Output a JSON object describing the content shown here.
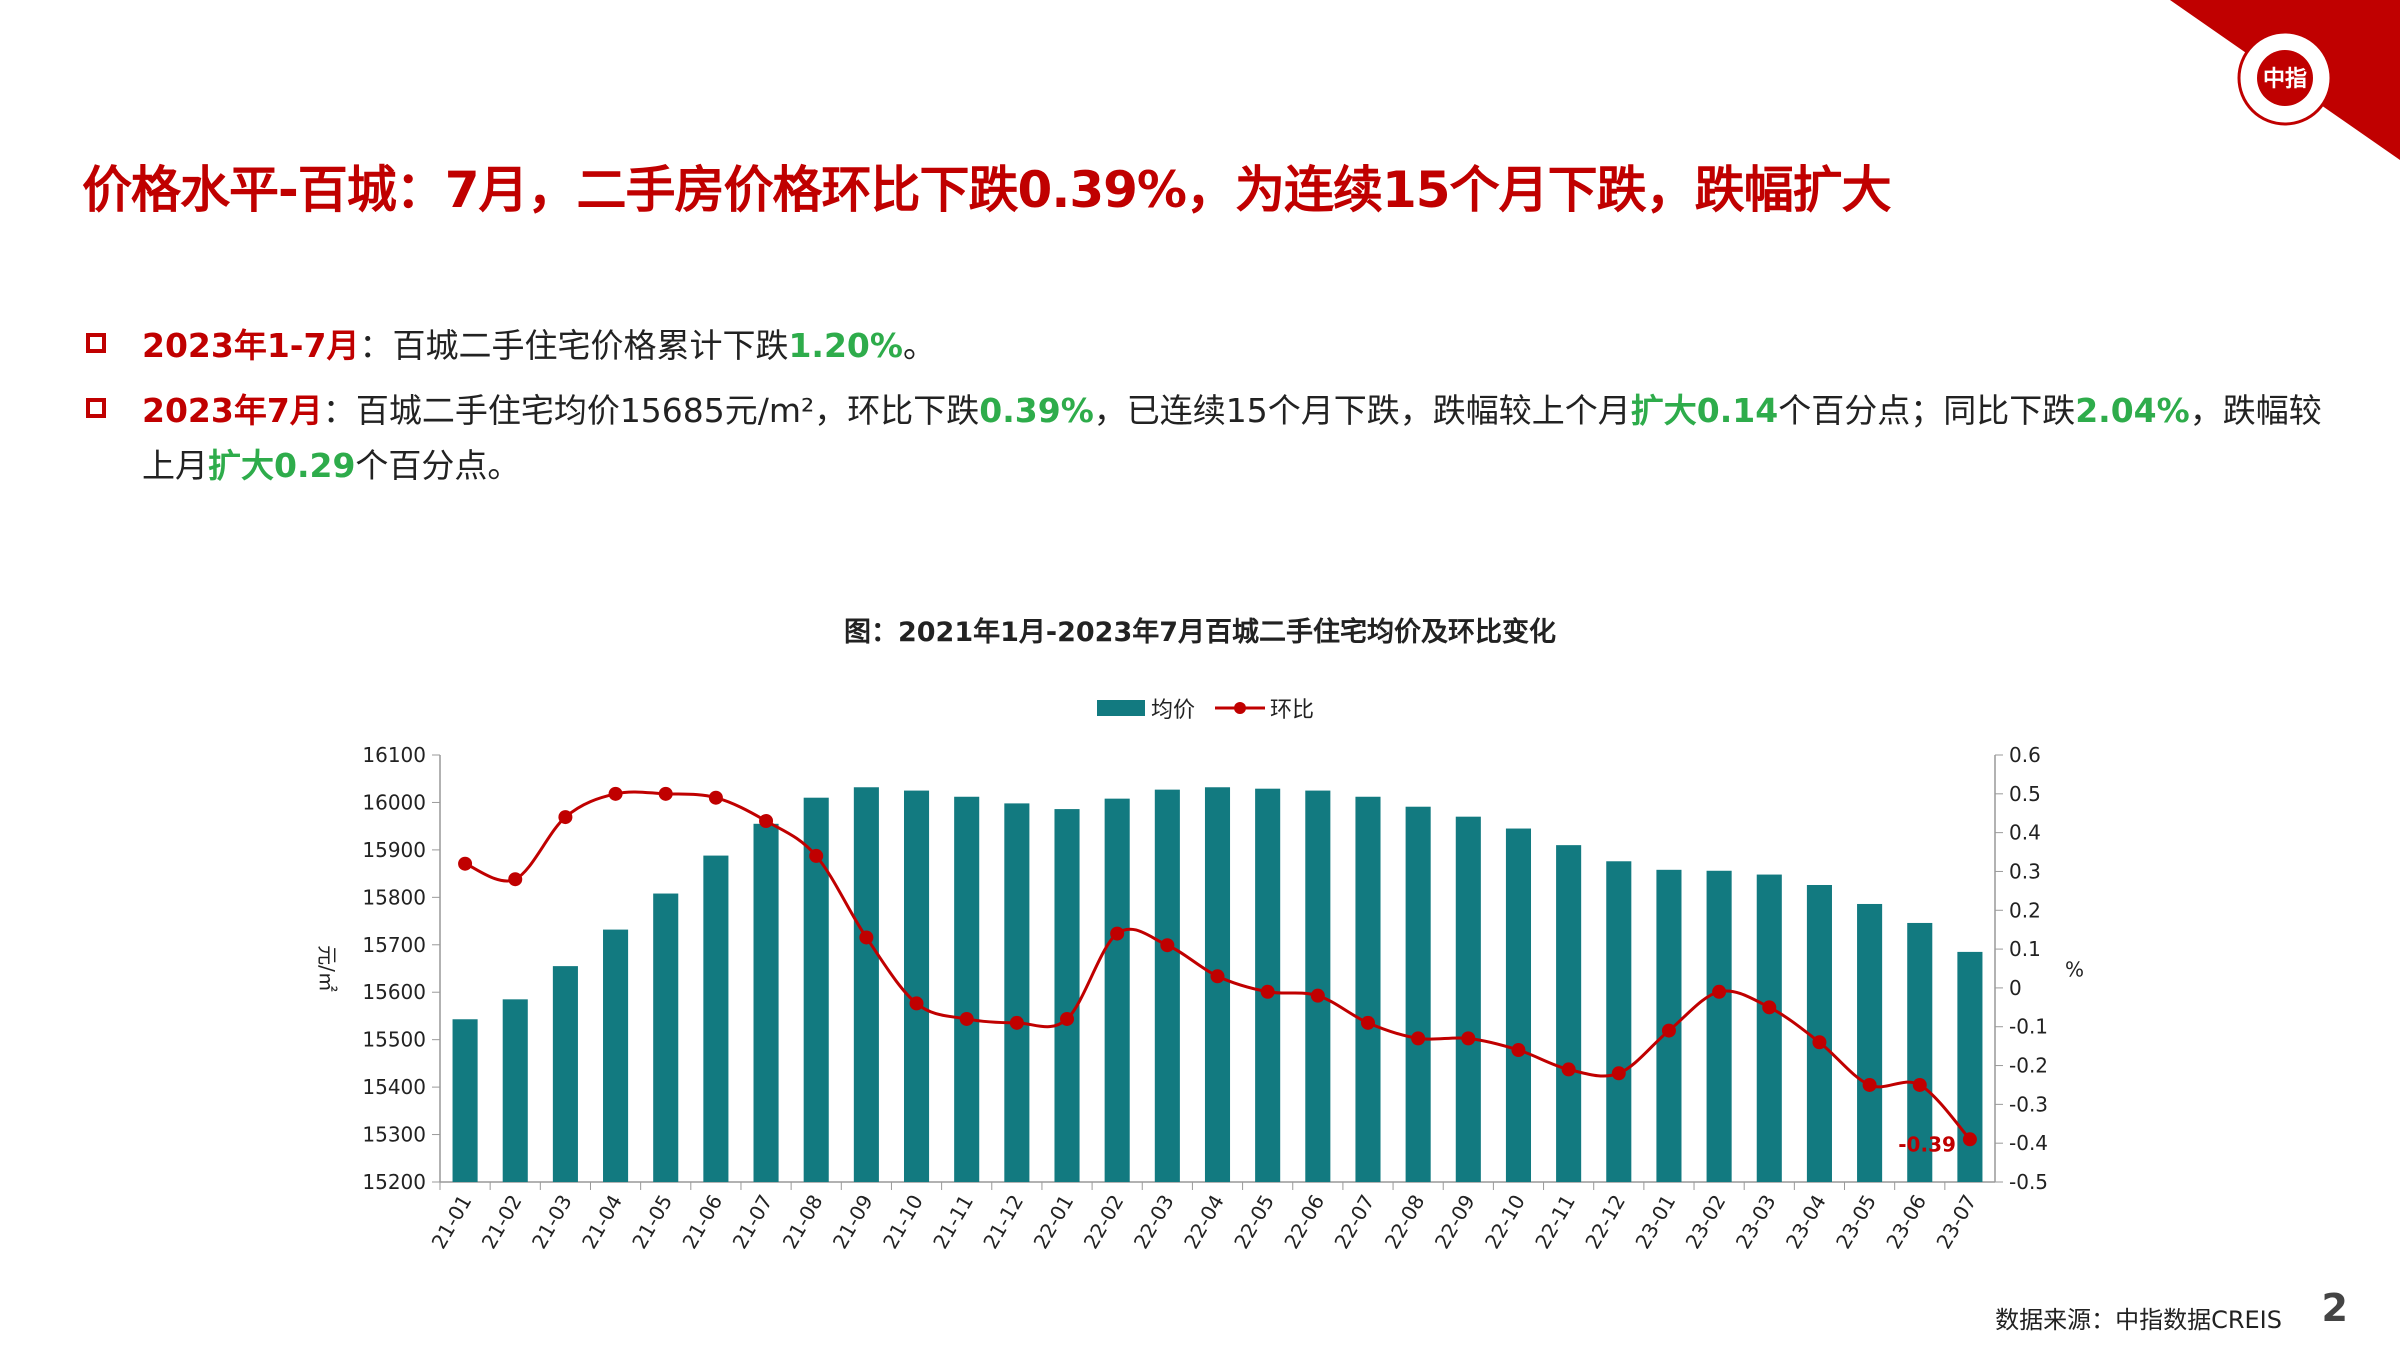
{
  "title": "价格水平-百城：7月，二手房价格环比下跌0.39%，为连续15个月下跌，跌幅扩大",
  "bullets": [
    {
      "segments": [
        {
          "text": "2023年1-7月",
          "style": "red"
        },
        {
          "text": "：百城二手住宅价格累计下跌",
          "style": "normal"
        },
        {
          "text": "1.20%",
          "style": "green"
        },
        {
          "text": "。",
          "style": "normal"
        }
      ]
    },
    {
      "segments": [
        {
          "text": "2023年7月",
          "style": "red"
        },
        {
          "text": "：百城二手住宅均价15685元/m²，环比下跌",
          "style": "normal"
        },
        {
          "text": "0.39%",
          "style": "green"
        },
        {
          "text": "，已连续15个月下跌，跌幅较上个月",
          "style": "normal"
        },
        {
          "text": "扩大0.14",
          "style": "green"
        },
        {
          "text": "个百分点；同比下跌",
          "style": "normal"
        },
        {
          "text": "2.04%",
          "style": "green"
        },
        {
          "text": "，跌幅较上月",
          "style": "normal"
        },
        {
          "text": "扩大0.29",
          "style": "green"
        },
        {
          "text": "个百分点。",
          "style": "normal"
        }
      ]
    }
  ],
  "chart_title": "图：2021年1月-2023年7月百城二手住宅均价及环比变化",
  "source": "数据来源：中指数据CREIS",
  "page_number": "2",
  "corner_logo_text": "中指",
  "colors": {
    "title_red": "#c00000",
    "highlight_green": "#2eac4b",
    "bar": "#127a80",
    "line": "#c00000"
  },
  "chart_data": {
    "type": "bar+line",
    "categories": [
      "21-01",
      "21-02",
      "21-03",
      "21-04",
      "21-05",
      "21-06",
      "21-07",
      "21-08",
      "21-09",
      "21-10",
      "21-11",
      "21-12",
      "22-01",
      "22-02",
      "22-03",
      "22-04",
      "22-05",
      "22-06",
      "22-07",
      "22-08",
      "22-09",
      "22-10",
      "22-11",
      "22-12",
      "23-01",
      "23-02",
      "23-03",
      "23-04",
      "23-05",
      "23-06",
      "23-07"
    ],
    "series": [
      {
        "name": "均价",
        "type": "bar",
        "axis": "left",
        "values": [
          15543,
          15585,
          15655,
          15732,
          15808,
          15888,
          15955,
          16010,
          16032,
          16025,
          16012,
          15998,
          15986,
          16008,
          16027,
          16032,
          16029,
          16025,
          16012,
          15991,
          15970,
          15945,
          15910,
          15876,
          15858,
          15856,
          15848,
          15826,
          15786,
          15746,
          15685
        ]
      },
      {
        "name": "环比",
        "type": "line",
        "axis": "right",
        "values": [
          0.32,
          0.28,
          0.44,
          0.5,
          0.5,
          0.49,
          0.43,
          0.34,
          0.13,
          -0.04,
          -0.08,
          -0.09,
          -0.08,
          0.14,
          0.11,
          0.03,
          -0.01,
          -0.02,
          -0.09,
          -0.13,
          -0.13,
          -0.16,
          -0.21,
          -0.22,
          -0.11,
          -0.01,
          -0.05,
          -0.14,
          -0.25,
          -0.25,
          -0.39
        ]
      }
    ],
    "ylabel_left": "元/㎡",
    "ylabel_right": "%",
    "ylim_left": [
      15200,
      16100
    ],
    "yticks_left": [
      15200,
      15300,
      15400,
      15500,
      15600,
      15700,
      15800,
      15900,
      16000,
      16100
    ],
    "ylim_right": [
      -0.5,
      0.6
    ],
    "yticks_right": [
      -0.5,
      -0.4,
      -0.3,
      -0.2,
      -0.1,
      0,
      0.1,
      0.2,
      0.3,
      0.4,
      0.5,
      0.6
    ],
    "annotation": "-0.39",
    "legend": [
      "均价",
      "环比"
    ],
    "legend_position": "top-center",
    "grid": false
  }
}
